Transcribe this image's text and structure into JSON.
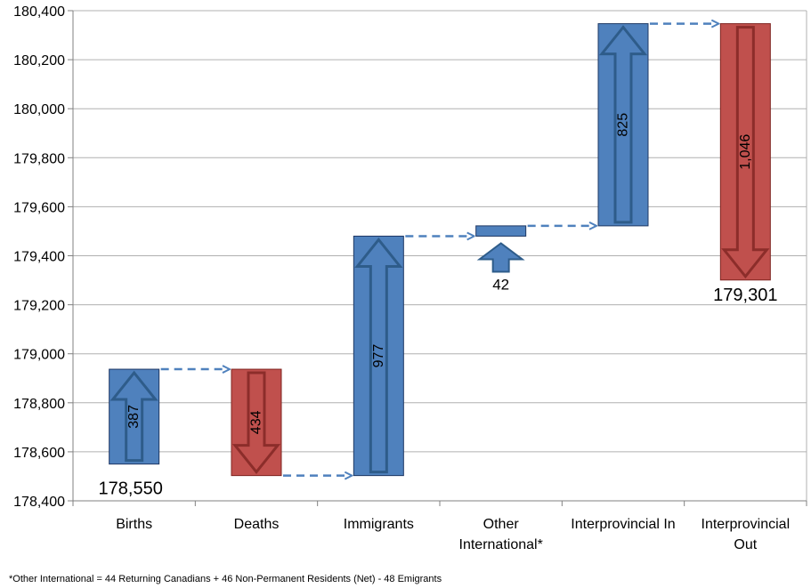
{
  "chart_data": {
    "type": "waterfall",
    "title": "",
    "xlabel": "",
    "ylabel": "",
    "ylim": [
      178400,
      180400
    ],
    "ytick_step": 200,
    "ytick_labels": [
      "178,400",
      "178,600",
      "178,800",
      "179,000",
      "179,200",
      "179,400",
      "179,600",
      "179,800",
      "180,000",
      "180,200",
      "180,400"
    ],
    "grid": true,
    "start_value": 178550,
    "start_label": "178,550",
    "end_value": 179301,
    "end_label": "179,301",
    "categories": [
      {
        "lines": [
          "Births"
        ]
      },
      {
        "lines": [
          "Deaths"
        ]
      },
      {
        "lines": [
          "Immigrants"
        ]
      },
      {
        "lines": [
          "Other",
          "International*"
        ]
      },
      {
        "lines": [
          "Interprovincial In"
        ]
      },
      {
        "lines": [
          "Interprovincial",
          "Out"
        ]
      }
    ],
    "steps": [
      {
        "name": "Births",
        "change": 387,
        "label": "387",
        "direction": "up"
      },
      {
        "name": "Deaths",
        "change": -434,
        "label": "434",
        "direction": "down"
      },
      {
        "name": "Immigrants",
        "change": 977,
        "label": "977",
        "direction": "up"
      },
      {
        "name": "Other International",
        "change": 42,
        "label": "42",
        "direction": "up"
      },
      {
        "name": "Interprovincial In",
        "change": 825,
        "label": "825",
        "direction": "up"
      },
      {
        "name": "Interprovincial Out",
        "change": -1046,
        "label": "1,046",
        "direction": "down"
      }
    ],
    "colors": {
      "increase": "#4f81bd",
      "increase_border": "#1f3864",
      "decrease": "#c0504d",
      "decrease_border": "#7f2420",
      "arrow_up": "#4f81bd",
      "arrow_up_edge": "#2e5c8a",
      "arrow_down": "#c0504d",
      "arrow_down_edge": "#8c2d2a",
      "connector": "#4f81bd",
      "grid": "#b0b0b0",
      "axis": "#808080"
    }
  },
  "footnote": "*Other International = 44 Returning Canadians + 46 Non-Permanent Residents (Net) - 48 Emigrants"
}
